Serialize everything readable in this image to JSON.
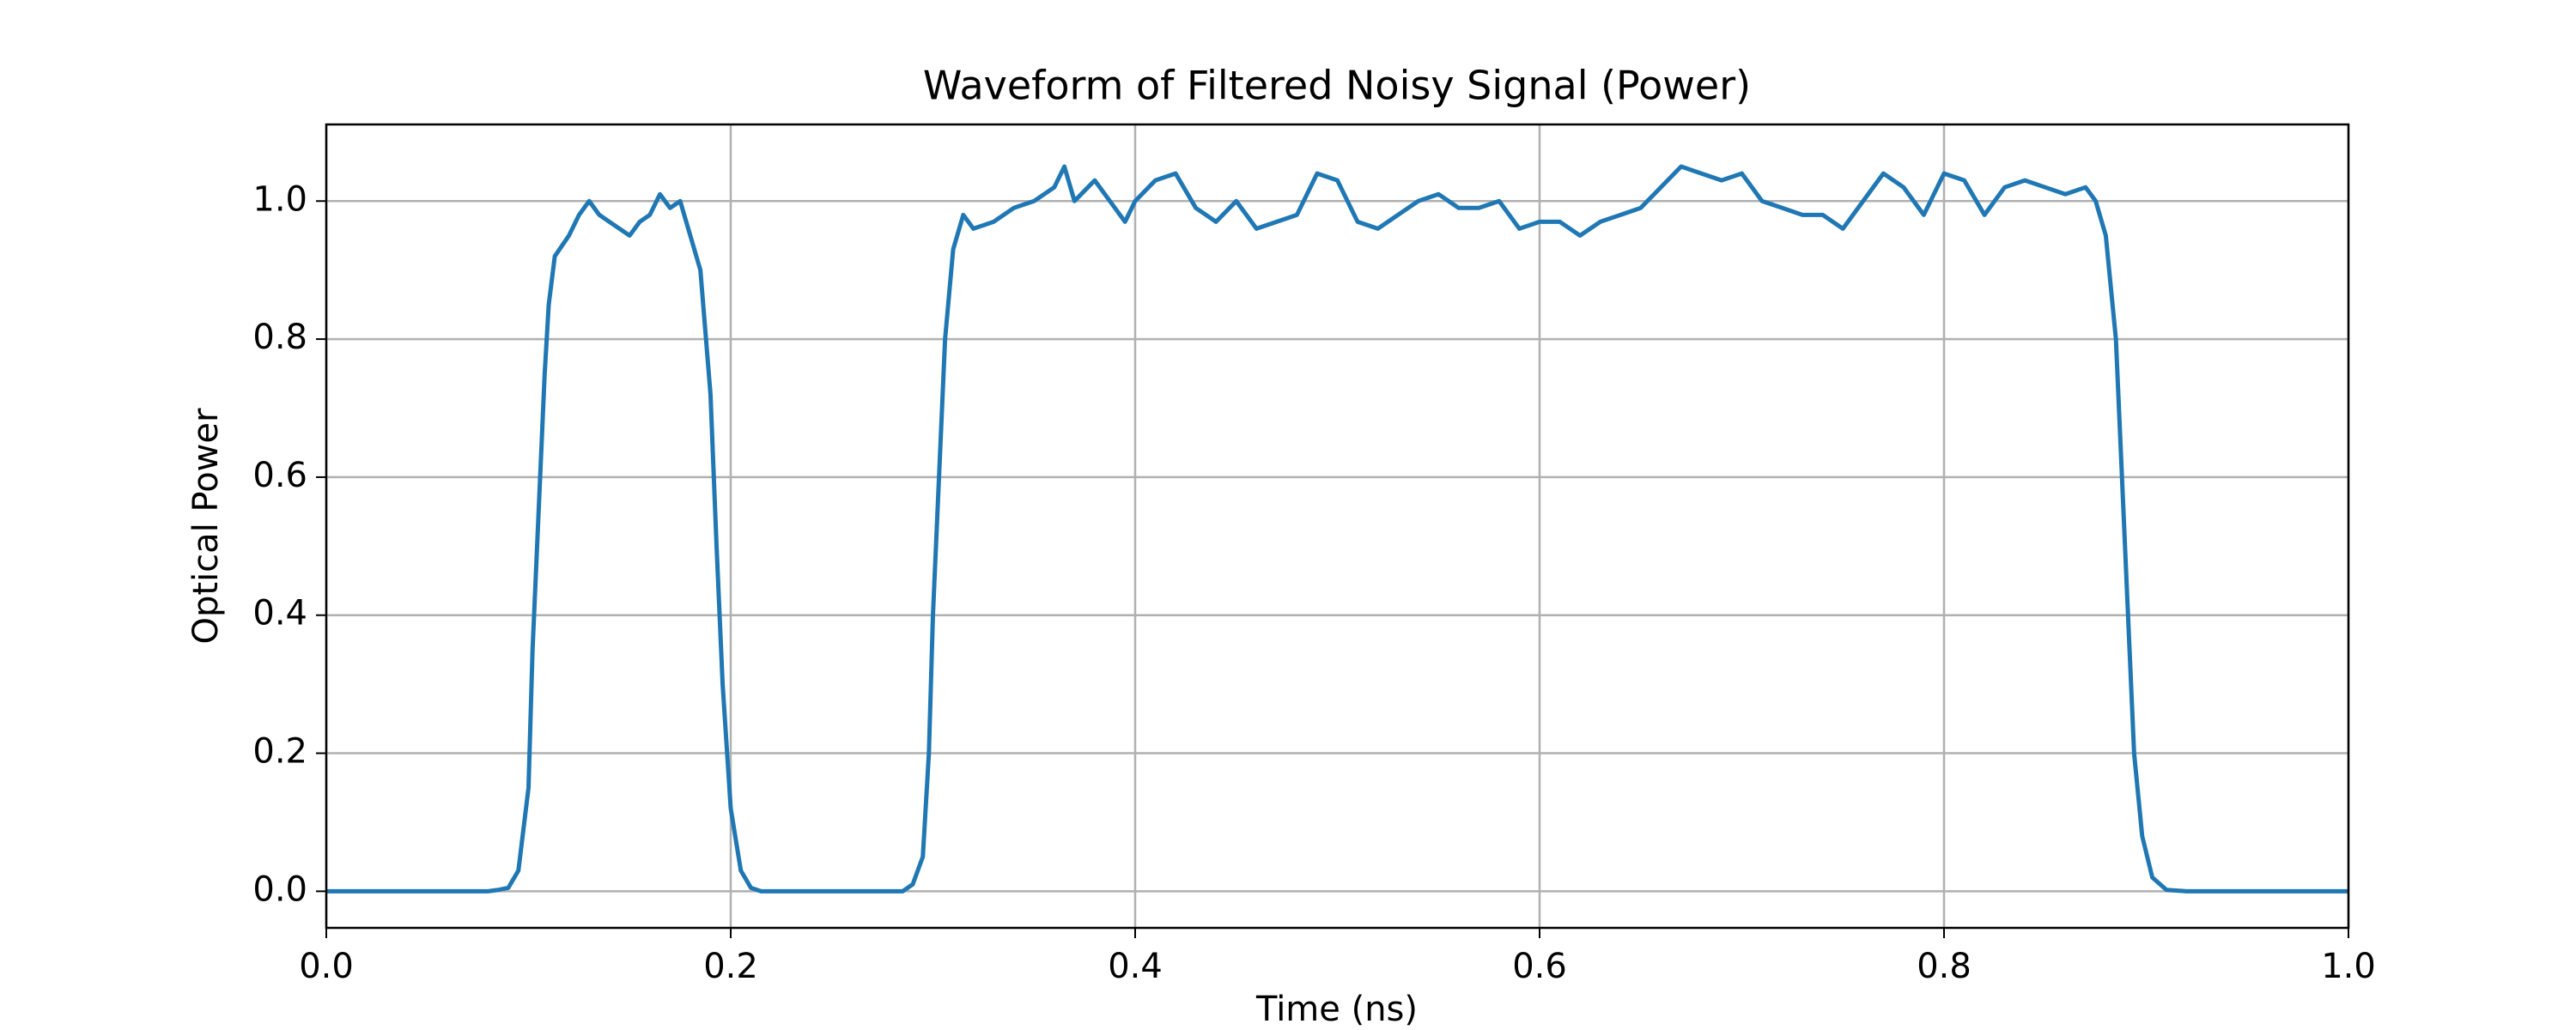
{
  "chart_data": {
    "type": "line",
    "title": "Waveform of Filtered Noisy Signal (Power)",
    "x_label": "Time (ns)",
    "y_label": "Optical Power",
    "x": [
      0,
      0.02,
      0.04,
      0.06,
      0.08,
      0.085,
      0.09,
      0.095,
      0.1,
      0.102,
      0.105,
      0.108,
      0.11,
      0.113,
      0.12,
      0.125,
      0.13,
      0.135,
      0.14,
      0.145,
      0.15,
      0.155,
      0.16,
      0.165,
      0.17,
      0.175,
      0.18,
      0.185,
      0.19,
      0.193,
      0.196,
      0.2,
      0.205,
      0.21,
      0.215,
      0.23,
      0.25,
      0.27,
      0.285,
      0.29,
      0.295,
      0.298,
      0.3,
      0.303,
      0.306,
      0.31,
      0.315,
      0.32,
      0.33,
      0.34,
      0.35,
      0.36,
      0.365,
      0.37,
      0.38,
      0.39,
      0.395,
      0.4,
      0.41,
      0.42,
      0.43,
      0.44,
      0.45,
      0.46,
      0.47,
      0.48,
      0.49,
      0.5,
      0.51,
      0.52,
      0.53,
      0.54,
      0.55,
      0.56,
      0.57,
      0.58,
      0.59,
      0.6,
      0.61,
      0.62,
      0.63,
      0.64,
      0.65,
      0.66,
      0.67,
      0.68,
      0.69,
      0.7,
      0.71,
      0.72,
      0.73,
      0.74,
      0.75,
      0.76,
      0.77,
      0.78,
      0.79,
      0.8,
      0.81,
      0.82,
      0.83,
      0.84,
      0.85,
      0.86,
      0.87,
      0.875,
      0.88,
      0.885,
      0.888,
      0.891,
      0.894,
      0.898,
      0.903,
      0.91,
      0.92,
      0.94,
      0.96,
      0.98,
      1.0
    ],
    "series": [
      {
        "name": "Optical Power",
        "color": "#1f77b4",
        "values": [
          0,
          0,
          0,
          0,
          0,
          0.002,
          0.005,
          0.03,
          0.15,
          0.35,
          0.55,
          0.75,
          0.85,
          0.92,
          0.95,
          0.98,
          1.0,
          0.98,
          0.97,
          0.96,
          0.95,
          0.97,
          0.98,
          1.01,
          0.99,
          1.0,
          0.95,
          0.9,
          0.72,
          0.5,
          0.3,
          0.12,
          0.03,
          0.005,
          0,
          0,
          0,
          0,
          0,
          0.01,
          0.05,
          0.2,
          0.4,
          0.6,
          0.8,
          0.93,
          0.98,
          0.96,
          0.97,
          0.99,
          1.0,
          1.02,
          1.05,
          1.0,
          1.03,
          0.99,
          0.97,
          1.0,
          1.03,
          1.04,
          0.99,
          0.97,
          1.0,
          0.96,
          0.97,
          0.98,
          1.04,
          1.03,
          0.97,
          0.96,
          0.98,
          1.0,
          1.01,
          0.99,
          0.99,
          1.0,
          0.96,
          0.97,
          0.97,
          0.95,
          0.97,
          0.98,
          0.99,
          1.02,
          1.05,
          1.04,
          1.03,
          1.04,
          1.0,
          0.99,
          0.98,
          0.98,
          0.96,
          1.0,
          1.04,
          1.02,
          0.98,
          1.04,
          1.03,
          0.98,
          1.02,
          1.03,
          1.02,
          1.01,
          1.02,
          1.0,
          0.95,
          0.8,
          0.6,
          0.4,
          0.2,
          0.08,
          0.02,
          0.002,
          0,
          0,
          0,
          0,
          0
        ]
      }
    ],
    "xlim": [
      0,
      1
    ],
    "ylim": [
      -0.053,
      1.111
    ],
    "xticks": [
      {
        "value": 0,
        "label": "0.0"
      },
      {
        "value": 0.2,
        "label": "0.2"
      },
      {
        "value": 0.4,
        "label": "0.4"
      },
      {
        "value": 0.6,
        "label": "0.6"
      },
      {
        "value": 0.8,
        "label": "0.8"
      },
      {
        "value": 1,
        "label": "1.0"
      }
    ],
    "yticks": [
      {
        "value": 0,
        "label": "0.0"
      },
      {
        "value": 0.2,
        "label": "0.2"
      },
      {
        "value": 0.4,
        "label": "0.4"
      },
      {
        "value": 0.6,
        "label": "0.6"
      },
      {
        "value": 0.8,
        "label": "0.8"
      },
      {
        "value": 1,
        "label": "1.0"
      }
    ],
    "grid": true
  }
}
